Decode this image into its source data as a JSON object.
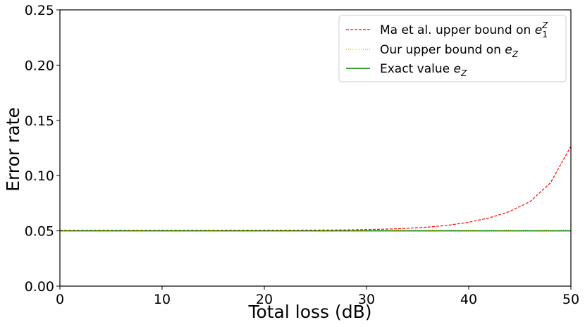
{
  "chart_data": {
    "type": "line",
    "xlabel": "Total loss (dB)",
    "ylabel": "Error rate",
    "xlim": [
      0,
      50
    ],
    "ylim": [
      0,
      0.25
    ],
    "x_ticks": [
      "0",
      "10",
      "20",
      "30",
      "40",
      "50"
    ],
    "y_ticks": [
      "0.00",
      "0.05",
      "0.10",
      "0.15",
      "0.20",
      "0.25"
    ],
    "grid": false,
    "legend_position": "top-right",
    "x": [
      0,
      5,
      10,
      15,
      20,
      25,
      28,
      30,
      32,
      34,
      36,
      38,
      40,
      42,
      44,
      46,
      48,
      50
    ],
    "series": [
      {
        "name": "Ma et al. upper bound on e_1^Z",
        "color": "#ff0000",
        "style": "dashed",
        "values": [
          0.0505,
          0.0505,
          0.0505,
          0.0505,
          0.0506,
          0.0507,
          0.0509,
          0.0512,
          0.0516,
          0.0523,
          0.0534,
          0.0551,
          0.0578,
          0.0617,
          0.0675,
          0.0765,
          0.0935,
          0.1265
        ]
      },
      {
        "name": "Our upper bound on e_Z",
        "color": "#ffa500",
        "style": "dotted",
        "values": [
          0.0507,
          0.0507,
          0.0507,
          0.0507,
          0.0507,
          0.0507,
          0.0507,
          0.0507,
          0.0507,
          0.0507,
          0.0507,
          0.0507,
          0.0507,
          0.0507,
          0.0507,
          0.0507,
          0.0507,
          0.0507
        ]
      },
      {
        "name": "Exact value e_Z",
        "color": "#008000",
        "style": "solid",
        "values": [
          0.05,
          0.05,
          0.05,
          0.05,
          0.05,
          0.05,
          0.05,
          0.05,
          0.05,
          0.05,
          0.05,
          0.05,
          0.05,
          0.05,
          0.05,
          0.05,
          0.05,
          0.05
        ]
      }
    ],
    "legend": [
      {
        "text": "Ma et al. upper bound on ",
        "math_base": "e",
        "math_sup": "Z",
        "math_sub": "1"
      },
      {
        "text": "Our upper bound on ",
        "math_base": "e",
        "math_sub": "Z"
      },
      {
        "text": "Exact value ",
        "math_base": "e",
        "math_sub": "Z"
      }
    ]
  }
}
